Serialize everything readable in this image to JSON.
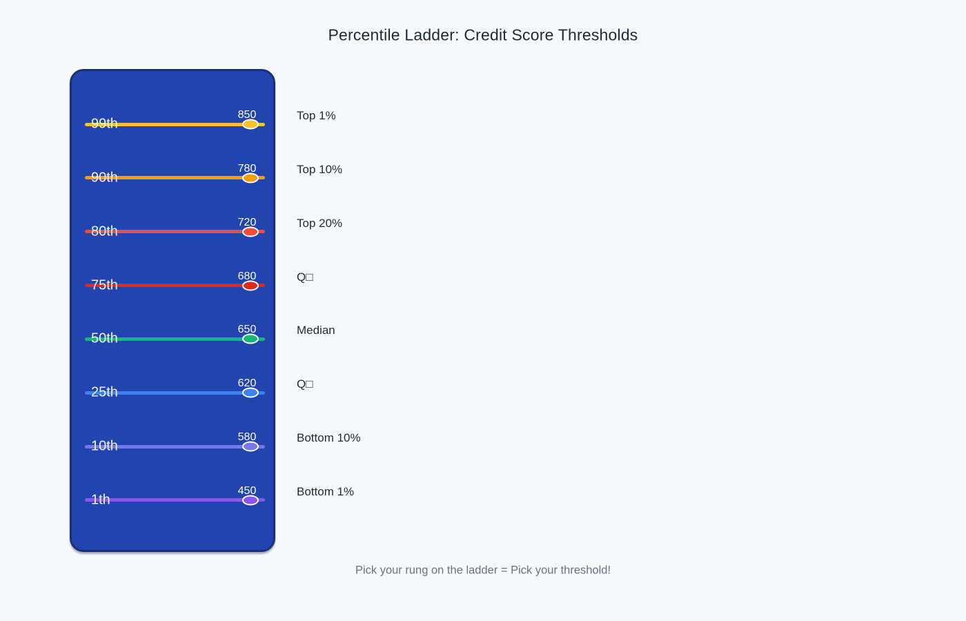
{
  "title": "Percentile Ladder: Credit Score Thresholds",
  "caption": "Pick your rung on the ladder = Pick your threshold!",
  "colors": {
    "page_bg": "#F7F8FA",
    "panel_bg": "#2144AF",
    "panel_border": "#1B2F77",
    "title_text": "#1F2937",
    "caption_text": "#6B7280",
    "rung_text": "#F5F5F5",
    "threshold_label_text": "#1F2937",
    "marker_stroke": "#FFFFFF"
  },
  "ladder": {
    "rungs": [
      {
        "percentile": "99th",
        "value": "850",
        "label": "Top 1%",
        "color": "#F5C133"
      },
      {
        "percentile": "90th",
        "value": "780",
        "label": "Top 10%",
        "color": "#F59E0B"
      },
      {
        "percentile": "80th",
        "value": "720",
        "label": "Top 20%",
        "color": "#EF4D3E"
      },
      {
        "percentile": "75th",
        "value": "680",
        "label": "Q□",
        "color": "#DC2A1E"
      },
      {
        "percentile": "50th",
        "value": "650",
        "label": "Median",
        "color": "#17B877"
      },
      {
        "percentile": "25th",
        "value": "620",
        "label": "Q□",
        "color": "#3C82F0"
      },
      {
        "percentile": "10th",
        "value": "580",
        "label": "Bottom 10%",
        "color": "#7477EE"
      },
      {
        "percentile": "1th",
        "value": "450",
        "label": "Bottom 1%",
        "color": "#8A56F0"
      }
    ]
  },
  "chart_data": {
    "type": "table",
    "title": "Percentile Ladder: Credit Score Thresholds",
    "caption": "Pick your rung on the ladder = Pick your threshold!",
    "columns": [
      "percentile",
      "credit_score",
      "threshold_label"
    ],
    "rows": [
      [
        "99th",
        850,
        "Top 1%"
      ],
      [
        "90th",
        780,
        "Top 10%"
      ],
      [
        "80th",
        720,
        "Top 20%"
      ],
      [
        "75th",
        680,
        "Q□"
      ],
      [
        "50th",
        650,
        "Median"
      ],
      [
        "25th",
        620,
        "Q□"
      ],
      [
        "10th",
        580,
        "Bottom 10%"
      ],
      [
        "1th",
        450,
        "Bottom 1%"
      ]
    ],
    "value_range": [
      450,
      850
    ],
    "legend_position": "none",
    "grid": false
  }
}
